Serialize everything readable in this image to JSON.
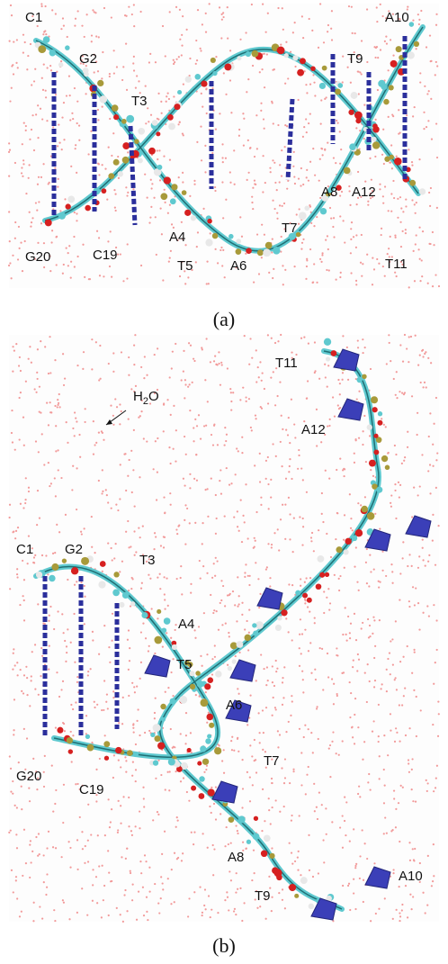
{
  "panel_a": {
    "labels": [
      "C1",
      "G2",
      "T3",
      "A4",
      "T5",
      "A6",
      "T7",
      "A8",
      "T9",
      "A10",
      "T11",
      "A12",
      "C19",
      "G20"
    ],
    "caption": "(a)"
  },
  "panel_b": {
    "labels": [
      "C1",
      "G2",
      "T3",
      "A4",
      "T5",
      "A6",
      "T7",
      "A8",
      "T9",
      "A10",
      "T11",
      "A12",
      "C19",
      "G20"
    ],
    "water": {
      "base": "H",
      "sub": "2",
      "tail": "O"
    },
    "caption": "(b)"
  }
}
